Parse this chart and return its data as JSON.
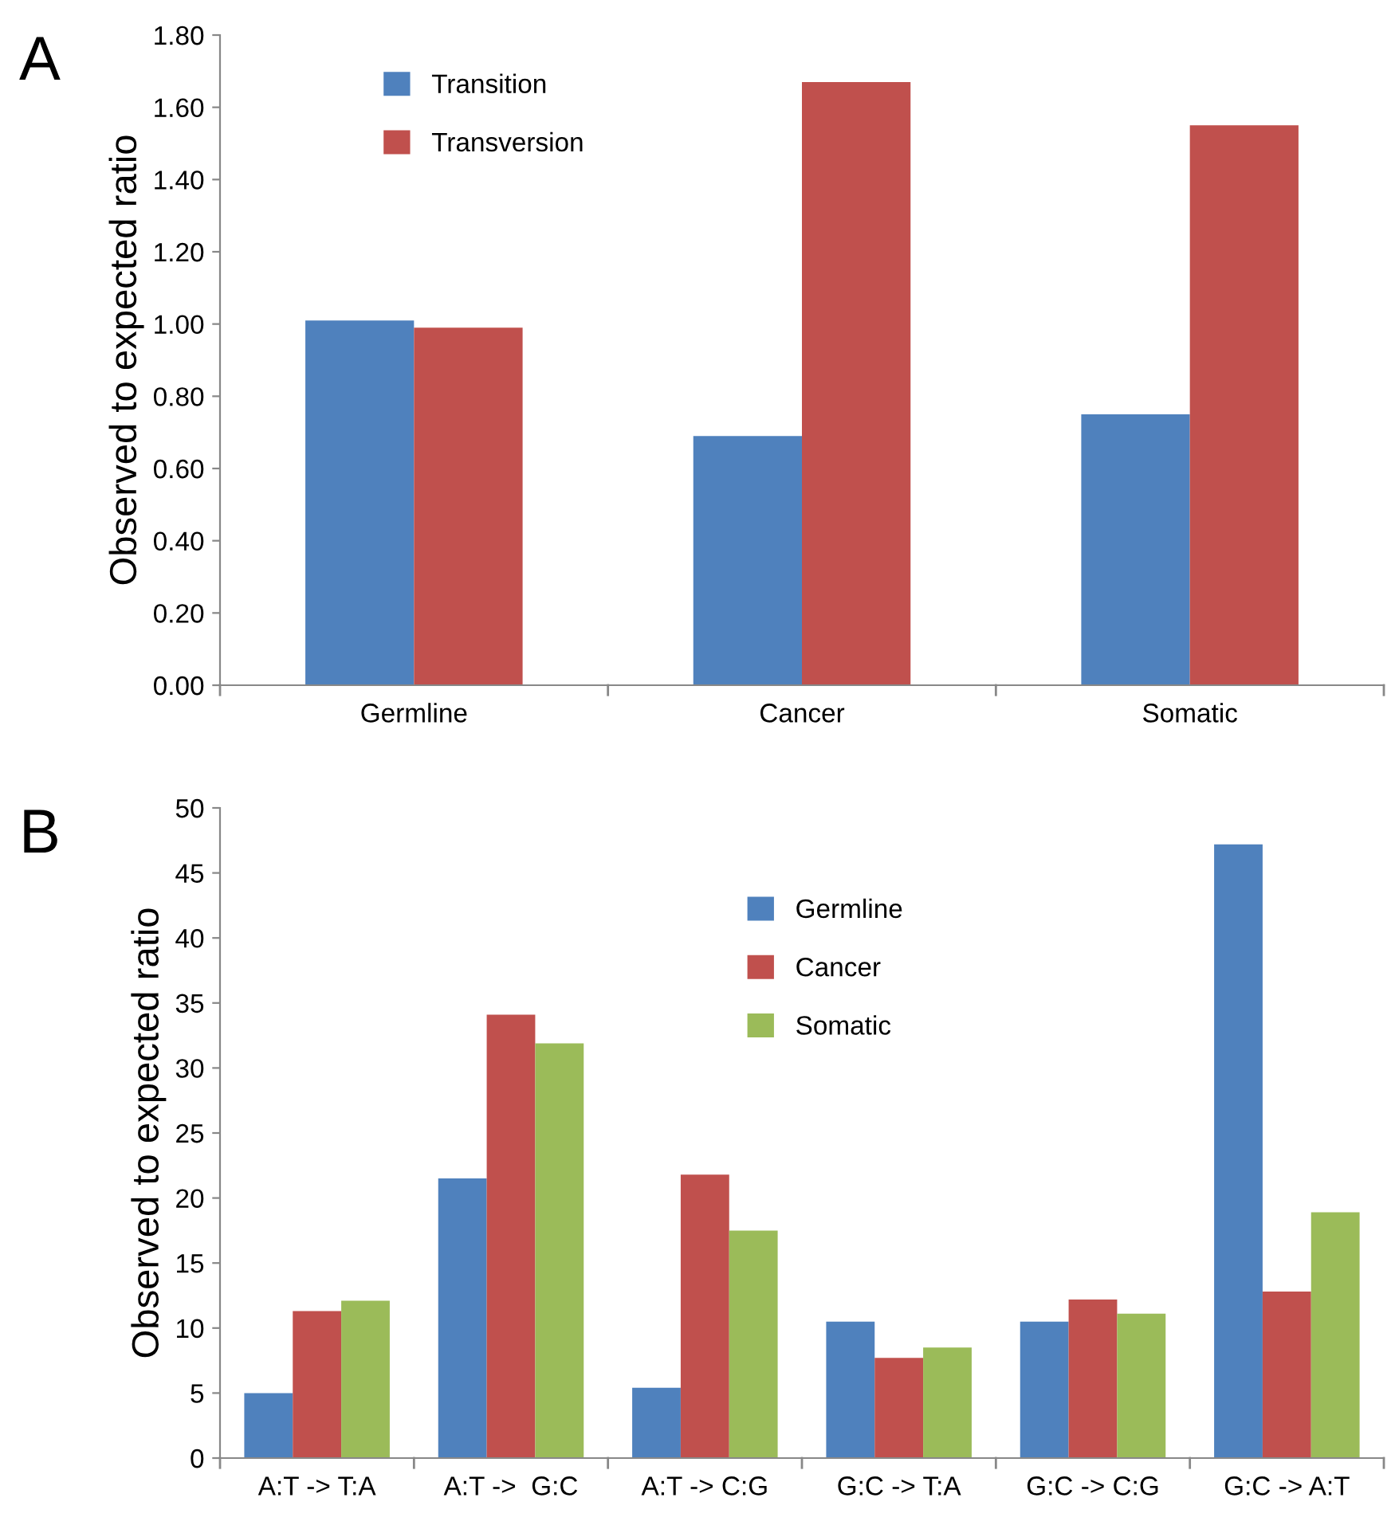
{
  "chart_data": [
    {
      "type": "bar",
      "ylabel": "Observed to expected ratio",
      "annotations": [
        "A"
      ],
      "categories": [
        "Germline",
        "Cancer",
        "Somatic"
      ],
      "series": [
        {
          "name": "Transition",
          "color": "#4f81bd",
          "values": [
            1.01,
            0.69,
            0.75
          ]
        },
        {
          "name": "Transversion",
          "color": "#c0504d",
          "values": [
            0.99,
            1.67,
            1.55
          ]
        }
      ],
      "ylim": [
        0,
        1.8
      ],
      "yticks": [
        {
          "value": 0,
          "label": "0.00"
        },
        {
          "value": 0.2,
          "label": "0.20"
        },
        {
          "value": 0.4,
          "label": "0.40"
        },
        {
          "value": 0.6,
          "label": "0.60"
        },
        {
          "value": 0.8,
          "label": "0.80"
        },
        {
          "value": 1.0,
          "label": "1.00"
        },
        {
          "value": 1.2,
          "label": "1.20"
        },
        {
          "value": 1.4,
          "label": "1.40"
        },
        {
          "value": 1.6,
          "label": "1.60"
        },
        {
          "value": 1.8,
          "label": "1.80"
        }
      ],
      "grid": false,
      "legend": "top left"
    },
    {
      "type": "bar",
      "ylabel": "Observed to expected ratio",
      "annotations": [
        "B"
      ],
      "categories": [
        "A:T -> T:A",
        "A:T ->  G:C",
        "A:T -> C:G",
        "G:C -> T:A",
        "G:C -> C:G",
        "G:C -> A:T"
      ],
      "series": [
        {
          "name": "Germline",
          "color": "#4f81bd",
          "values": [
            5.0,
            21.5,
            5.4,
            10.5,
            10.5,
            47.2
          ]
        },
        {
          "name": "Cancer",
          "color": "#c0504d",
          "values": [
            11.3,
            34.1,
            21.8,
            7.7,
            12.2,
            12.8
          ]
        },
        {
          "name": "Somatic",
          "color": "#9bbb59",
          "values": [
            12.1,
            31.9,
            17.5,
            8.5,
            11.1,
            18.9
          ]
        }
      ],
      "ylim": [
        0,
        50
      ],
      "yticks": [
        0,
        5,
        10,
        15,
        20,
        25,
        30,
        35,
        40,
        45,
        50
      ],
      "grid": false,
      "legend": "top"
    }
  ]
}
